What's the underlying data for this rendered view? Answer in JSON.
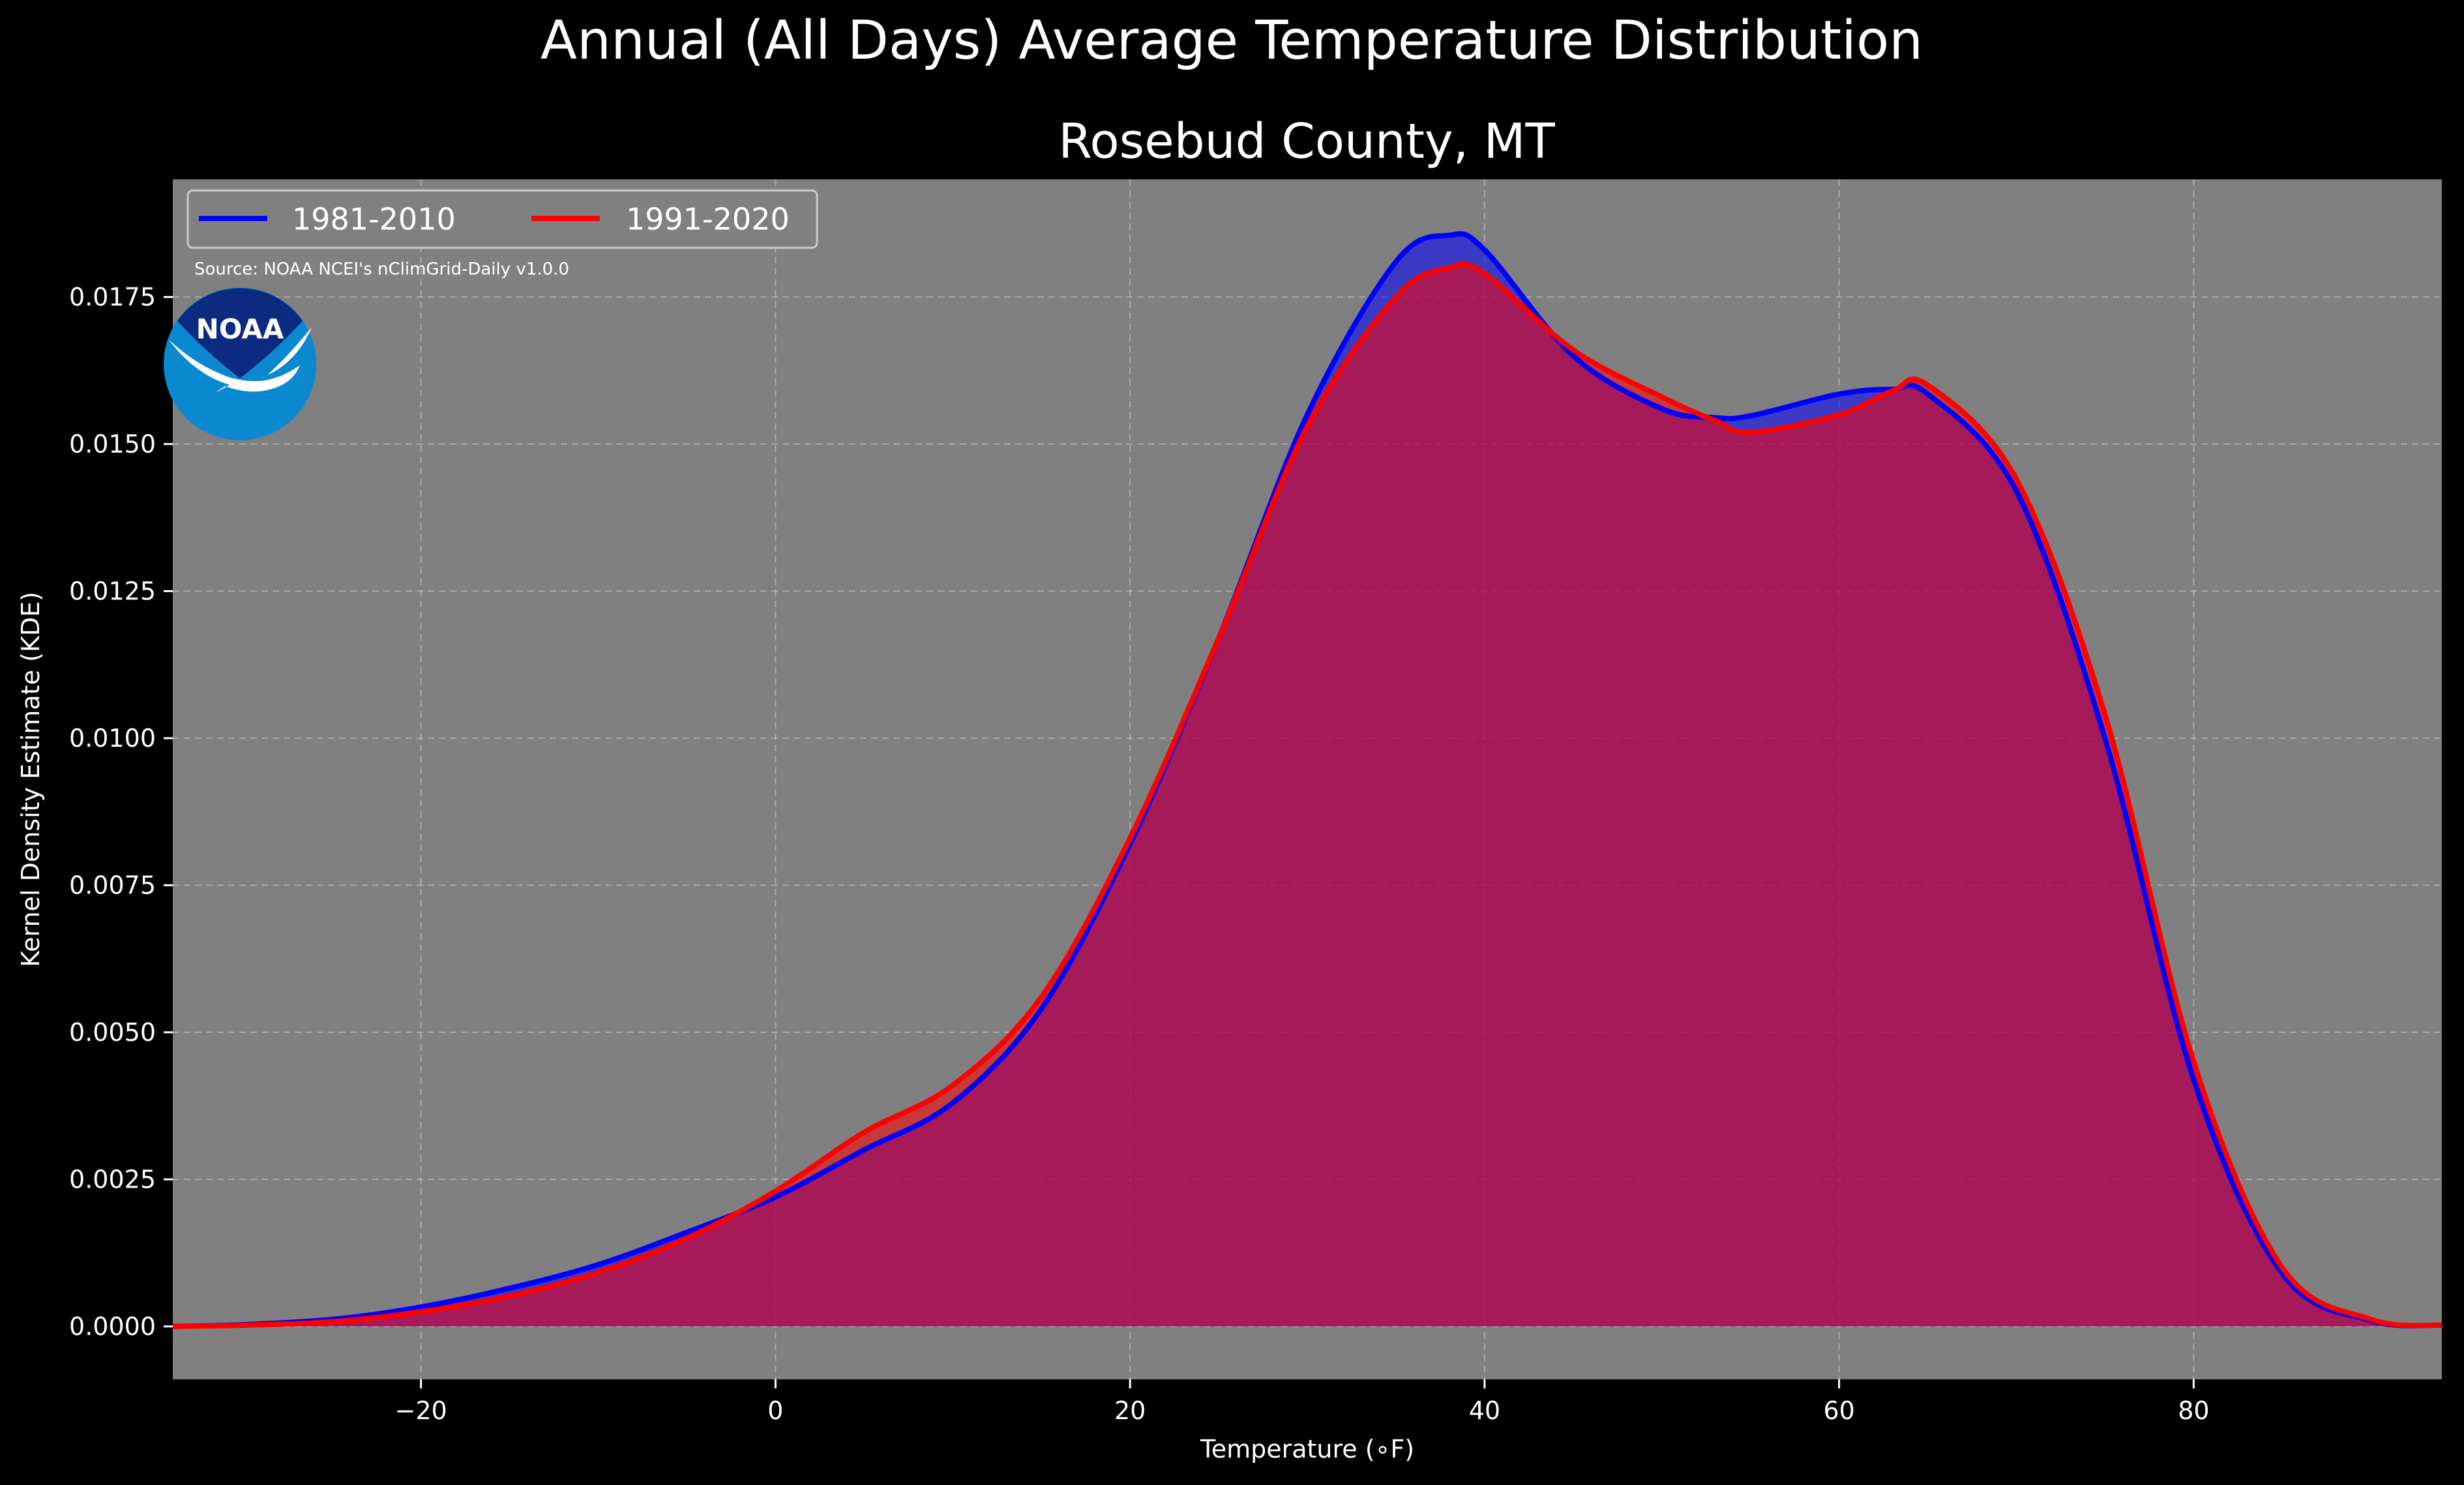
{
  "chart_data": {
    "type": "area",
    "suptitle": "Annual (All Days) Average Temperature Distribution",
    "title": "Rosebud County, MT",
    "xlabel": "Temperature (∘F)",
    "ylabel": "Kernel Density Estimate (KDE)",
    "xlim": [
      -34,
      94
    ],
    "ylim": [
      -0.0009,
      0.0195
    ],
    "xticks": [
      -20,
      0,
      20,
      40,
      60,
      80
    ],
    "xtick_labels": [
      "−20",
      "0",
      "20",
      "40",
      "60",
      "80"
    ],
    "yticks": [
      0.0,
      0.0025,
      0.005,
      0.0075,
      0.01,
      0.0125,
      0.015,
      0.0175
    ],
    "ytick_labels": [
      "0.0000",
      "0.0025",
      "0.0050",
      "0.0075",
      "0.0100",
      "0.0125",
      "0.0150",
      "0.0175"
    ],
    "grid": true,
    "legend_position": "top-left",
    "background": "#808080",
    "x": [
      -34,
      -30,
      -25,
      -20,
      -15,
      -10,
      -5,
      0,
      5,
      10,
      15,
      20,
      25,
      30,
      35,
      38,
      40,
      45,
      50,
      53,
      55,
      60,
      63,
      65,
      70,
      75,
      80,
      85,
      90,
      94
    ],
    "series": [
      {
        "name": "1981-2010",
        "color": "#0000ff",
        "fill": "#4b0fc0",
        "values": [
          0.0,
          3e-05,
          0.00012,
          0.00033,
          0.00065,
          0.00105,
          0.0016,
          0.0022,
          0.003,
          0.0038,
          0.0054,
          0.0082,
          0.0117,
          0.0155,
          0.0181,
          0.01855,
          0.0183,
          0.0165,
          0.0156,
          0.01545,
          0.01548,
          0.01585,
          0.01593,
          0.01585,
          0.0142,
          0.01,
          0.0042,
          0.0009,
          0.0001,
          2e-05
        ]
      },
      {
        "name": "1991-2020",
        "color": "#ff0000",
        "fill": "#b01e44",
        "values": [
          0.0,
          2e-05,
          8e-05,
          0.00025,
          0.00052,
          0.00092,
          0.0015,
          0.0023,
          0.0033,
          0.0041,
          0.0056,
          0.0083,
          0.0117,
          0.0153,
          0.0175,
          0.018,
          0.0179,
          0.0166,
          0.0158,
          0.0154,
          0.0152,
          0.0155,
          0.0159,
          0.016,
          0.0144,
          0.0104,
          0.0045,
          0.001,
          0.00012,
          2e-05
        ]
      }
    ],
    "annotation": "Source: NOAA NCEI's nClimGrid-Daily v1.0.0",
    "logo_text": "NOAA"
  }
}
